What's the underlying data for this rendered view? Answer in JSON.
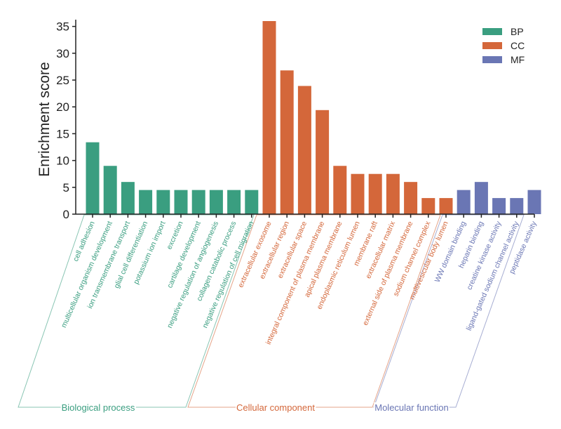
{
  "chart_data": {
    "type": "bar",
    "title": "",
    "xlabel": "",
    "ylabel": "Enrichment score",
    "ylim": [
      0,
      36
    ],
    "yticks": [
      0,
      5,
      10,
      15,
      20,
      25,
      30,
      35
    ],
    "grid": false,
    "legend_position": "top-right",
    "colors": {
      "BP": "#3a9e80",
      "CC": "#d4673a",
      "MF": "#6a76b4"
    },
    "groups": [
      {
        "key": "BP",
        "legend": "BP",
        "name": "Biological process",
        "categories": [
          "cell adhesion",
          "multicellular organism development",
          "ion transmembrane transport",
          "glial cell differentiation",
          "potassium ion import",
          "excretion",
          "cartilage development",
          "negative regulation of angiogenesis",
          "collagen catabolic process",
          "negative regulation of cell migration"
        ],
        "values": [
          13.4,
          9,
          6,
          4.5,
          4.5,
          4.5,
          4.5,
          4.5,
          4.5,
          4.5
        ]
      },
      {
        "key": "CC",
        "legend": "CC",
        "name": "Cellular component",
        "categories": [
          "extracellular exosome",
          "extracellular region",
          "extracellular space",
          "integral component of plasma membrane",
          "apical plasma membrane",
          "endoplasmic reticulum lumen",
          "membrane raft",
          "extracellular matrix",
          "external side of plasma membrane",
          "sodium channel complex",
          "multivesicular body lumen"
        ],
        "values": [
          36,
          26.8,
          23.9,
          19.4,
          9,
          7.5,
          7.5,
          7.5,
          6,
          3,
          3
        ]
      },
      {
        "key": "MF",
        "legend": "MF",
        "name": "Molecular function",
        "categories": [
          "WW domain binding",
          "heparin binding",
          "creatine kinase activity",
          "ligand-gated sodium channel activity",
          "peptidase activity"
        ],
        "values": [
          4.5,
          6,
          3,
          3,
          4.5
        ]
      }
    ]
  }
}
